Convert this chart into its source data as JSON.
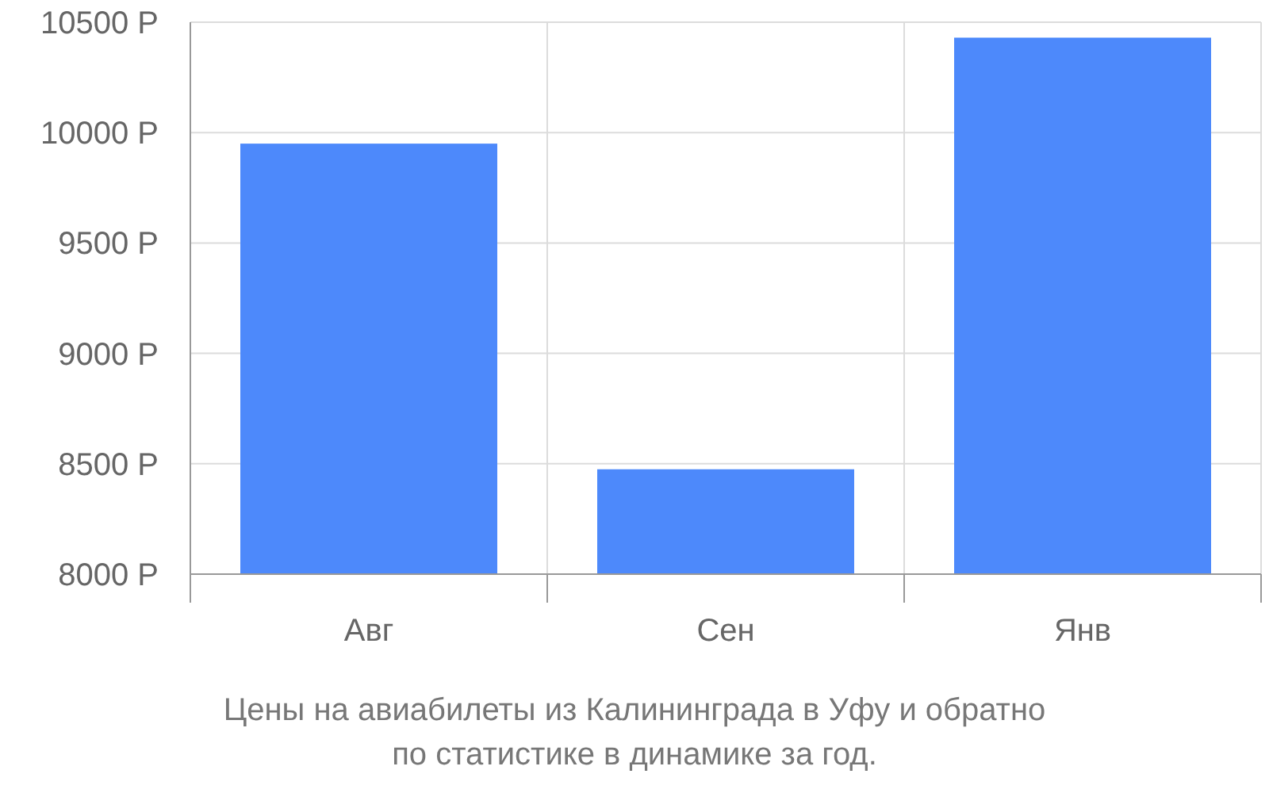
{
  "chart_data": {
    "type": "bar",
    "categories": [
      "Авг",
      "Сен",
      "Янв"
    ],
    "values": [
      9950,
      8475,
      10430
    ],
    "color": "#4d89fb",
    "ylim": [
      8000,
      10500
    ],
    "yticks": [
      {
        "value": 8000,
        "label": "8000 Р"
      },
      {
        "value": 8500,
        "label": "8500 Р"
      },
      {
        "value": 9000,
        "label": "9000 Р"
      },
      {
        "value": 9500,
        "label": "9500 Р"
      },
      {
        "value": 10000,
        "label": "10000 Р"
      },
      {
        "value": 10500,
        "label": "10500 Р"
      }
    ],
    "grid": true,
    "annotations": [
      "Цены на авиабилеты из Калининграда в Уфу и обратно",
      "по статистике в динамике за год."
    ]
  }
}
